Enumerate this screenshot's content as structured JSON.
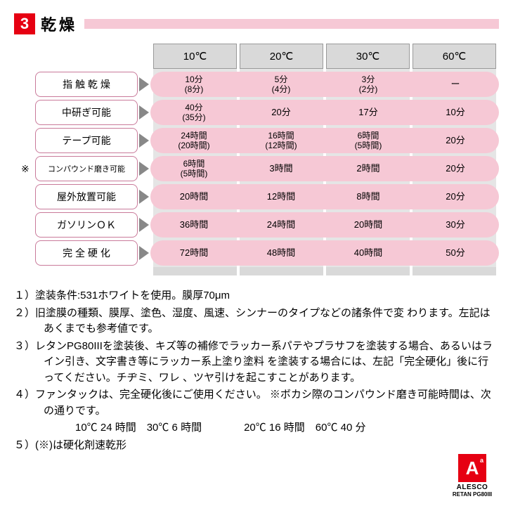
{
  "header": {
    "num": "3",
    "title": "乾燥"
  },
  "columns": [
    "10℃",
    "20℃",
    "30℃",
    "60℃"
  ],
  "rows": [
    {
      "label": "指 触 乾 燥",
      "cells": [
        [
          "10分",
          "(8分)"
        ],
        [
          "5分",
          "(4分)"
        ],
        [
          "3分",
          "(2分)"
        ],
        [
          "ー",
          ""
        ]
      ],
      "aster": false
    },
    {
      "label": "中研ぎ可能",
      "cells": [
        [
          "40分",
          "(35分)"
        ],
        [
          "20分",
          ""
        ],
        [
          "17分",
          ""
        ],
        [
          "10分",
          ""
        ]
      ],
      "aster": false
    },
    {
      "label": "テープ可能",
      "cells": [
        [
          "24時間",
          "(20時間)"
        ],
        [
          "16時間",
          "(12時間)"
        ],
        [
          "6時間",
          "(5時間)"
        ],
        [
          "20分",
          ""
        ]
      ],
      "aster": false
    },
    {
      "label": "コンパウンド磨き可能",
      "cells": [
        [
          "6時間",
          "(5時間)"
        ],
        [
          "3時間",
          ""
        ],
        [
          "2時間",
          ""
        ],
        [
          "20分",
          ""
        ]
      ],
      "aster": true
    },
    {
      "label": "屋外放置可能",
      "cells": [
        [
          "20時間",
          ""
        ],
        [
          "12時間",
          ""
        ],
        [
          "8時間",
          ""
        ],
        [
          "20分",
          ""
        ]
      ],
      "aster": false
    },
    {
      "label": "ガソリンＯＫ",
      "cells": [
        [
          "36時間",
          ""
        ],
        [
          "24時間",
          ""
        ],
        [
          "20時間",
          ""
        ],
        [
          "30分",
          ""
        ]
      ],
      "aster": false
    },
    {
      "label": "完 全 硬 化",
      "cells": [
        [
          "72時間",
          ""
        ],
        [
          "48時間",
          ""
        ],
        [
          "40時間",
          ""
        ],
        [
          "50分",
          ""
        ]
      ],
      "aster": false
    }
  ],
  "notes": [
    "１）塗装条件:531ホワイトを使用。膜厚70μm",
    "２）旧塗膜の種類、膜厚、塗色、湿度、風速、シンナーのタイプなどの諸条件で変 わります。左記はあくまでも参考値です。",
    "３）レタンPG80IIIを塗装後、キズ等の補修でラッカー系パテやプラサフを塗装する場合、あるいはライン引き、文字書き等にラッカー系上塗り塗料 を塗装する場合には、左記「完全硬化」後に行ってください。チヂミ、ワレ 、ツヤ引けを起こすことがあります。",
    "４）ファンタックは、完全硬化後にご使用ください。 ※ボカシ際のコンパウンド磨き可能時間は、次の通りです。",
    "　　　10℃ 24 時間　30℃ 6 時間　　　　20℃ 16 時間　60℃ 40 分",
    "５）(※)は硬化剤速乾形"
  ],
  "logo": {
    "brand": "ALESCO",
    "sub": "RETAN PG80III"
  },
  "colors": {
    "red": "#e60012",
    "pink": "#f6c8d5",
    "gray": "#d9d9d9",
    "border": "#c97a9a"
  }
}
